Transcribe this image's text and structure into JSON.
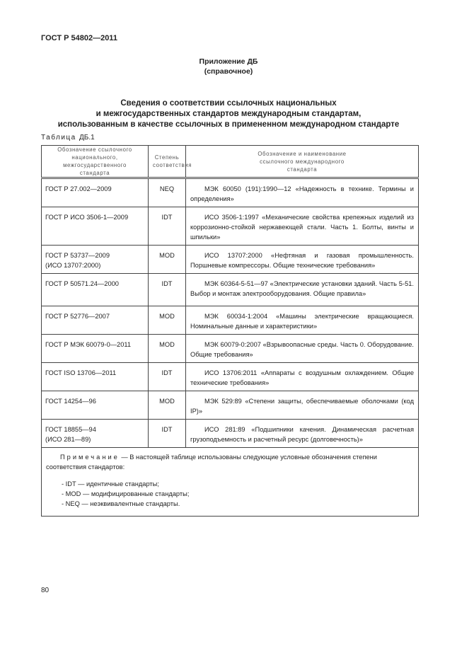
{
  "header": {
    "doc_id": "ГОСТ Р 54802—2011"
  },
  "appendix": {
    "title": "Приложение ДБ",
    "subtitle": "(справочное)"
  },
  "section_title": [
    "Сведения о соответствии ссылочных национальных",
    "и межгосударственных стандартов международным стандартам,",
    "использованным в качестве ссылочных в примененном международном стандарте"
  ],
  "table": {
    "label_spaced": "Таблица",
    "label_num": "ДБ.1",
    "columns": [
      "Обозначение ссылочного национального, межгосударственного стандарта",
      "Степень соответствия",
      "Обозначение и наименование ссылочного международного стандарта"
    ],
    "rows": [
      {
        "national": "ГОСТ Р 27.002—2009",
        "degree": "NEQ",
        "international": "МЭК 60050 (191):1990—12 «Надежность в технике. Термины и определения»"
      },
      {
        "national": "ГОСТ Р ИСО 3506-1—2009",
        "degree": "IDT",
        "international": "ИСО 3506-1:1997 «Механические свойства крепежных изделий из коррозионно-стойкой нержавеющей стали. Часть 1. Болты, винты и шпильки»"
      },
      {
        "national": "ГОСТ Р 53737—2009 (ИСО 13707:2000)",
        "degree": "MOD",
        "international": "ИСО 13707:2000 «Нефтяная и газовая промышленность. Поршневые компрессоры. Общие технические требования»"
      },
      {
        "national": "ГОСТ Р 50571.24—2000",
        "degree": "IDT",
        "international": "МЭК 60364-5-51—97 «Электрические установки зданий. Часть 5-51. Выбор и монтаж электрооборудования. Общие правила»"
      },
      {
        "national": "ГОСТ Р 52776—2007",
        "degree": "MOD",
        "international": "МЭК 60034-1:2004 «Машины электрические вращающиеся. Номинальные данные и характеристики»"
      },
      {
        "national": "ГОСТ Р МЭК 60079-0—2011",
        "degree": "MOD",
        "international": "МЭК 60079-0:2007 «Взрывоопасные среды. Часть 0. Оборудование. Общие требования»"
      },
      {
        "national": "ГОСТ ISO 13706—2011",
        "degree": "IDT",
        "international": "ИСО 13706:2011 «Аппараты с воздушным охлаждением. Общие технические требования»"
      },
      {
        "national": "ГОСТ 14254—96",
        "degree": "MOD",
        "international": "МЭК 529:89 «Степени защиты, обеспечиваемые оболочками (код IP)»"
      },
      {
        "national": "ГОСТ 18855—94 (ИСО 281—89)",
        "degree": "IDT",
        "international": "ИСО 281:89 «Подшипники качения. Динамическая расчетная грузоподъемность и расчетный ресурс (долговечность)»"
      }
    ],
    "note": {
      "label": "Примечание",
      "text": " — В настоящей таблице использованы следующие условные обозначения степени соответствия стандартов:",
      "items": [
        "- IDT — идентичные стандарты;",
        "- MOD — модифицированные стандарты;",
        "- NEQ — неэквивалентные стандарты."
      ]
    }
  },
  "page_number": "80"
}
